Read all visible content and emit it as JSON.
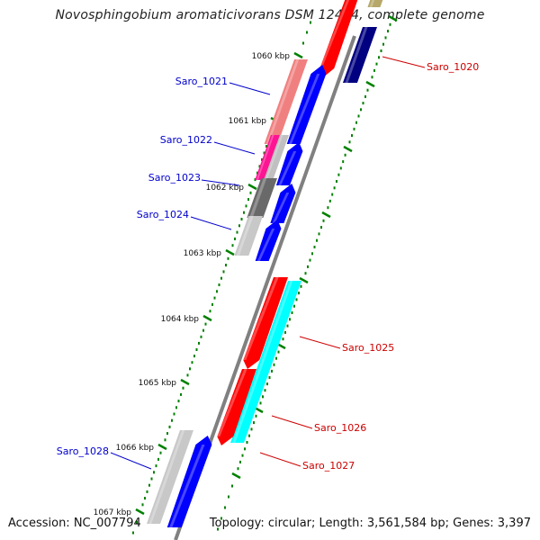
{
  "title": "Novosphingobium aromaticivorans DSM 12444, complete genome",
  "footer": {
    "accession": "Accession: NC_007794",
    "summary": "Topology: circular; Length: 3,561,584 bp; Genes: 3,397"
  },
  "colors": {
    "forward_label": "#cc0000",
    "reverse_label": "#0000cc",
    "tick": "#008000",
    "backbone": "#808080"
  },
  "ticks": [
    {
      "label": "1060 kbp",
      "kbp": 1060
    },
    {
      "label": "1061 kbp",
      "kbp": 1061
    },
    {
      "label": "1062 kbp",
      "kbp": 1062
    },
    {
      "label": "1063 kbp",
      "kbp": 1063
    },
    {
      "label": "1064 kbp",
      "kbp": 1064
    },
    {
      "label": "1065 kbp",
      "kbp": 1065
    },
    {
      "label": "1066 kbp",
      "kbp": 1066
    },
    {
      "label": "1067 kbp",
      "kbp": 1067
    }
  ],
  "genes": [
    {
      "label": "Saro_1020",
      "strand": "forward"
    },
    {
      "label": "Saro_1021",
      "strand": "reverse"
    },
    {
      "label": "Saro_1022",
      "strand": "reverse"
    },
    {
      "label": "Saro_1023",
      "strand": "reverse"
    },
    {
      "label": "Saro_1024",
      "strand": "reverse"
    },
    {
      "label": "Saro_1025",
      "strand": "forward"
    },
    {
      "label": "Saro_1026",
      "strand": "forward"
    },
    {
      "label": "Saro_1027",
      "strand": "forward"
    },
    {
      "label": "Saro_1028",
      "strand": "reverse"
    }
  ]
}
